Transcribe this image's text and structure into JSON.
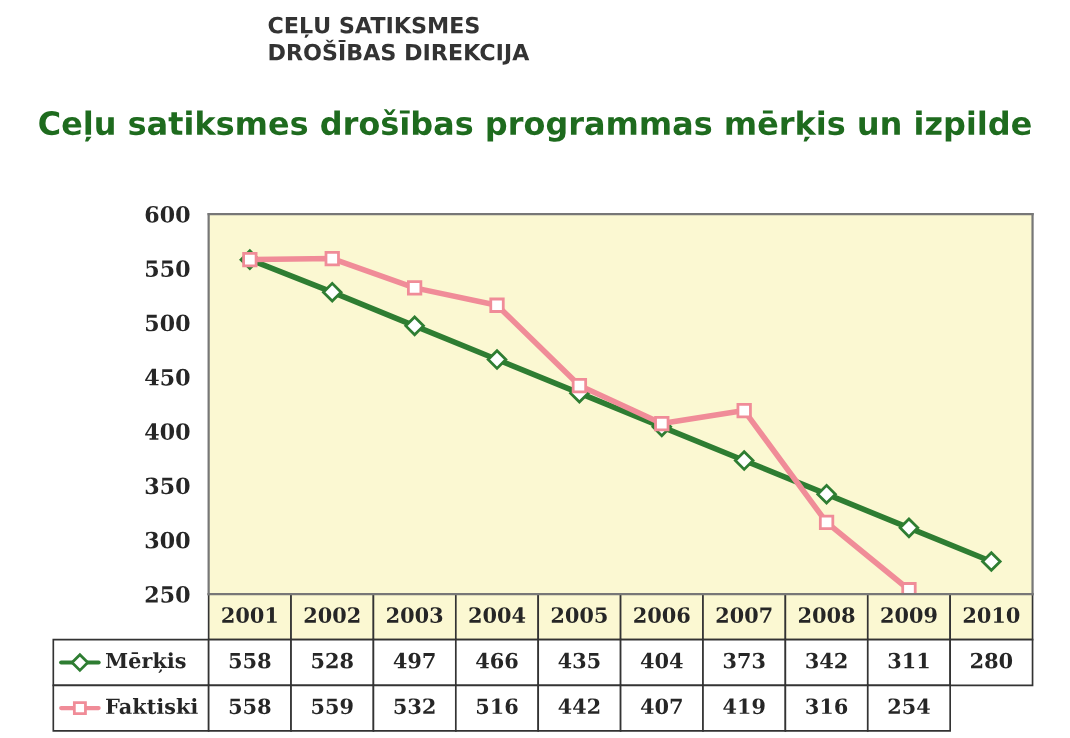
{
  "chart_data": {
    "type": "line",
    "title": "Ceļu satiksmes drošības programmas mērķis un izpilde",
    "annotations": [
      "CEĻU SATIKSMES\nDROŠĪBAS DIREKCIJA"
    ],
    "categories": [
      "2001",
      "2002",
      "2003",
      "2004",
      "2005",
      "2006",
      "2007",
      "2008",
      "2009",
      "2010"
    ],
    "series": [
      {
        "name": "Mērķis",
        "color": "#2e7d32",
        "marker": "diamond",
        "values": [
          558,
          528,
          497,
          466,
          435,
          404,
          373,
          342,
          311,
          280
        ]
      },
      {
        "name": "Faktiski",
        "color": "#f08c98",
        "marker": "square",
        "values": [
          558,
          559,
          532,
          516,
          442,
          407,
          419,
          316,
          254,
          null
        ]
      }
    ],
    "ylim": [
      250,
      600
    ],
    "yticks": [
      250,
      300,
      350,
      400,
      450,
      500,
      550,
      600
    ],
    "data_labels": true,
    "legend": "bottom",
    "grid": false
  }
}
